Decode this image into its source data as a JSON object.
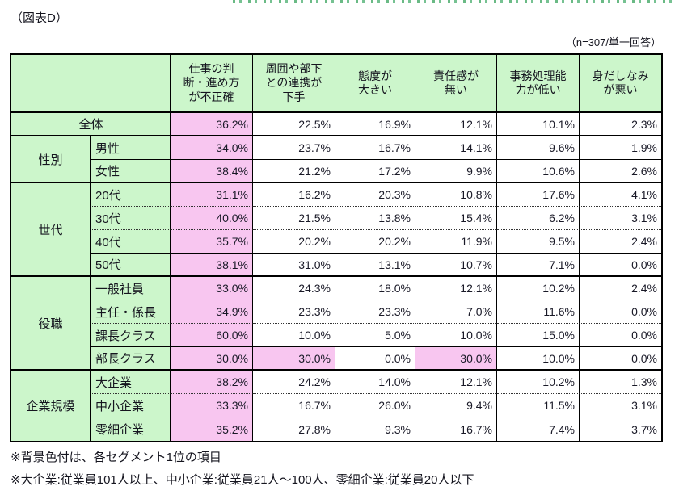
{
  "figure_label": "（図表D）",
  "sample_note": "（n=307/単一回答）",
  "colors": {
    "header_green": "#ccf6cb",
    "highlight_pink": "#f8c6f0"
  },
  "chart_data": {
    "type": "table",
    "title": "（図表D）",
    "note": "（n=307/単一回答）",
    "highlight_rule": "背景色付は、各セグメント1位の項目",
    "columns": [
      {
        "label": "仕事の判\n断・進め方\nが不正確",
        "full": "仕事の判断・進め方が不正確"
      },
      {
        "label": "周囲や部下\nとの連携が\n下手",
        "full": "周囲や部下との連携が下手"
      },
      {
        "label": "態度が\n大きい",
        "full": "態度が大きい"
      },
      {
        "label": "責任感が\n無い",
        "full": "責任感が無い"
      },
      {
        "label": "事務処理能\n力が低い",
        "full": "事務処理能力が低い"
      },
      {
        "label": "身だしなみ\nが悪い",
        "full": "身だしなみが悪い"
      }
    ],
    "sections": [
      {
        "group": null,
        "rows": [
          {
            "label": "全体",
            "span": 2,
            "values": [
              "36.2%",
              "22.5%",
              "16.9%",
              "12.1%",
              "10.1%",
              "2.3%"
            ],
            "highlights": [
              0
            ],
            "divider_after": "section"
          }
        ]
      },
      {
        "group": "性別",
        "rows": [
          {
            "label": "男性",
            "values": [
              "34.0%",
              "23.7%",
              "16.7%",
              "14.1%",
              "9.6%",
              "1.9%"
            ],
            "highlights": [
              0
            ],
            "divider_after": "solid"
          },
          {
            "label": "女性",
            "values": [
              "38.4%",
              "21.2%",
              "17.2%",
              "9.9%",
              "10.6%",
              "2.6%"
            ],
            "highlights": [
              0
            ],
            "divider_after": "section"
          }
        ]
      },
      {
        "group": "世代",
        "rows": [
          {
            "label": "20代",
            "values": [
              "31.1%",
              "16.2%",
              "20.3%",
              "10.8%",
              "17.6%",
              "4.1%"
            ],
            "highlights": [
              0
            ],
            "divider_after": "dotted"
          },
          {
            "label": "30代",
            "values": [
              "40.0%",
              "21.5%",
              "13.8%",
              "15.4%",
              "6.2%",
              "3.1%"
            ],
            "highlights": [
              0
            ],
            "divider_after": "dotted"
          },
          {
            "label": "40代",
            "values": [
              "35.7%",
              "20.2%",
              "20.2%",
              "11.9%",
              "9.5%",
              "2.4%"
            ],
            "highlights": [
              0
            ],
            "divider_after": "solid"
          },
          {
            "label": "50代",
            "values": [
              "38.1%",
              "31.0%",
              "13.1%",
              "10.7%",
              "7.1%",
              "0.0%"
            ],
            "highlights": [
              0
            ],
            "divider_after": "section"
          }
        ]
      },
      {
        "group": "役職",
        "rows": [
          {
            "label": "一般社員",
            "values": [
              "33.0%",
              "24.3%",
              "18.0%",
              "12.1%",
              "10.2%",
              "2.4%"
            ],
            "highlights": [
              0
            ],
            "divider_after": "dotted"
          },
          {
            "label": "主任・係長",
            "values": [
              "34.9%",
              "23.3%",
              "23.3%",
              "7.0%",
              "11.6%",
              "0.0%"
            ],
            "highlights": [
              0
            ],
            "divider_after": "dotted"
          },
          {
            "label": "課長クラス",
            "values": [
              "60.0%",
              "10.0%",
              "5.0%",
              "10.0%",
              "15.0%",
              "0.0%"
            ],
            "highlights": [
              0
            ],
            "divider_after": "solid"
          },
          {
            "label": "部長クラス",
            "values": [
              "30.0%",
              "30.0%",
              "0.0%",
              "30.0%",
              "10.0%",
              "0.0%"
            ],
            "highlights": [
              0,
              1,
              3
            ],
            "divider_after": "section"
          }
        ]
      },
      {
        "group": "企業規模",
        "rows": [
          {
            "label": "大企業",
            "values": [
              "38.2%",
              "24.2%",
              "14.0%",
              "12.1%",
              "10.2%",
              "1.3%"
            ],
            "highlights": [
              0
            ],
            "divider_after": "dotted"
          },
          {
            "label": "中小企業",
            "values": [
              "33.3%",
              "16.7%",
              "26.0%",
              "9.4%",
              "11.5%",
              "3.1%"
            ],
            "highlights": [
              0
            ],
            "divider_after": "dotted"
          },
          {
            "label": "零細企業",
            "values": [
              "35.2%",
              "27.8%",
              "9.3%",
              "16.7%",
              "7.4%",
              "3.7%"
            ],
            "highlights": [
              0
            ],
            "divider_after": "none"
          }
        ]
      }
    ]
  },
  "footnotes": [
    "※背景色付は、各セグメント1位の項目",
    "※大企業:従業員101人以上、中小企業:従業員21人～100人、零細企業:従業員20人以下"
  ]
}
